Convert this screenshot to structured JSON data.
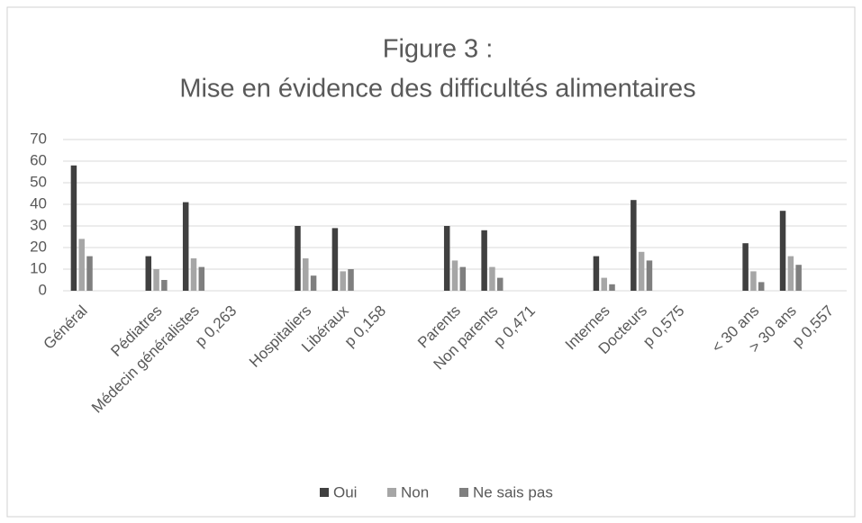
{
  "chart_data": {
    "type": "bar",
    "title": [
      "Figure 3 :",
      "Mise en évidence des difficultés alimentaires"
    ],
    "categories": [
      "Général",
      null,
      "Pédiatres",
      "Médecin généralistes",
      "p 0,263",
      null,
      "Hospitaliers",
      "Libéraux",
      "p 0,158",
      null,
      "Parents",
      "Non parents",
      "p 0,471",
      null,
      "Internes",
      "Docteurs",
      "p 0,575",
      null,
      "< 30 ans",
      "> 30 ans",
      "p 0,557"
    ],
    "series": [
      {
        "name": "Oui",
        "color": "#404040",
        "values": [
          58,
          null,
          16,
          41,
          null,
          null,
          30,
          29,
          null,
          null,
          30,
          28,
          null,
          null,
          16,
          42,
          null,
          null,
          22,
          37,
          null
        ]
      },
      {
        "name": "Non",
        "color": "#a6a6a6",
        "values": [
          24,
          null,
          10,
          15,
          null,
          null,
          15,
          9,
          null,
          null,
          14,
          11,
          null,
          null,
          6,
          18,
          null,
          null,
          9,
          16,
          null
        ]
      },
      {
        "name": "Ne sais pas",
        "color": "#7f7f7f",
        "values": [
          16,
          null,
          5,
          11,
          null,
          null,
          7,
          10,
          null,
          null,
          11,
          6,
          null,
          null,
          3,
          14,
          null,
          null,
          4,
          12,
          null
        ]
      }
    ],
    "ylim": [
      0,
      70
    ],
    "yticks": [
      0,
      10,
      20,
      30,
      40,
      50,
      60,
      70
    ],
    "grid": true,
    "legend": "bottom"
  }
}
